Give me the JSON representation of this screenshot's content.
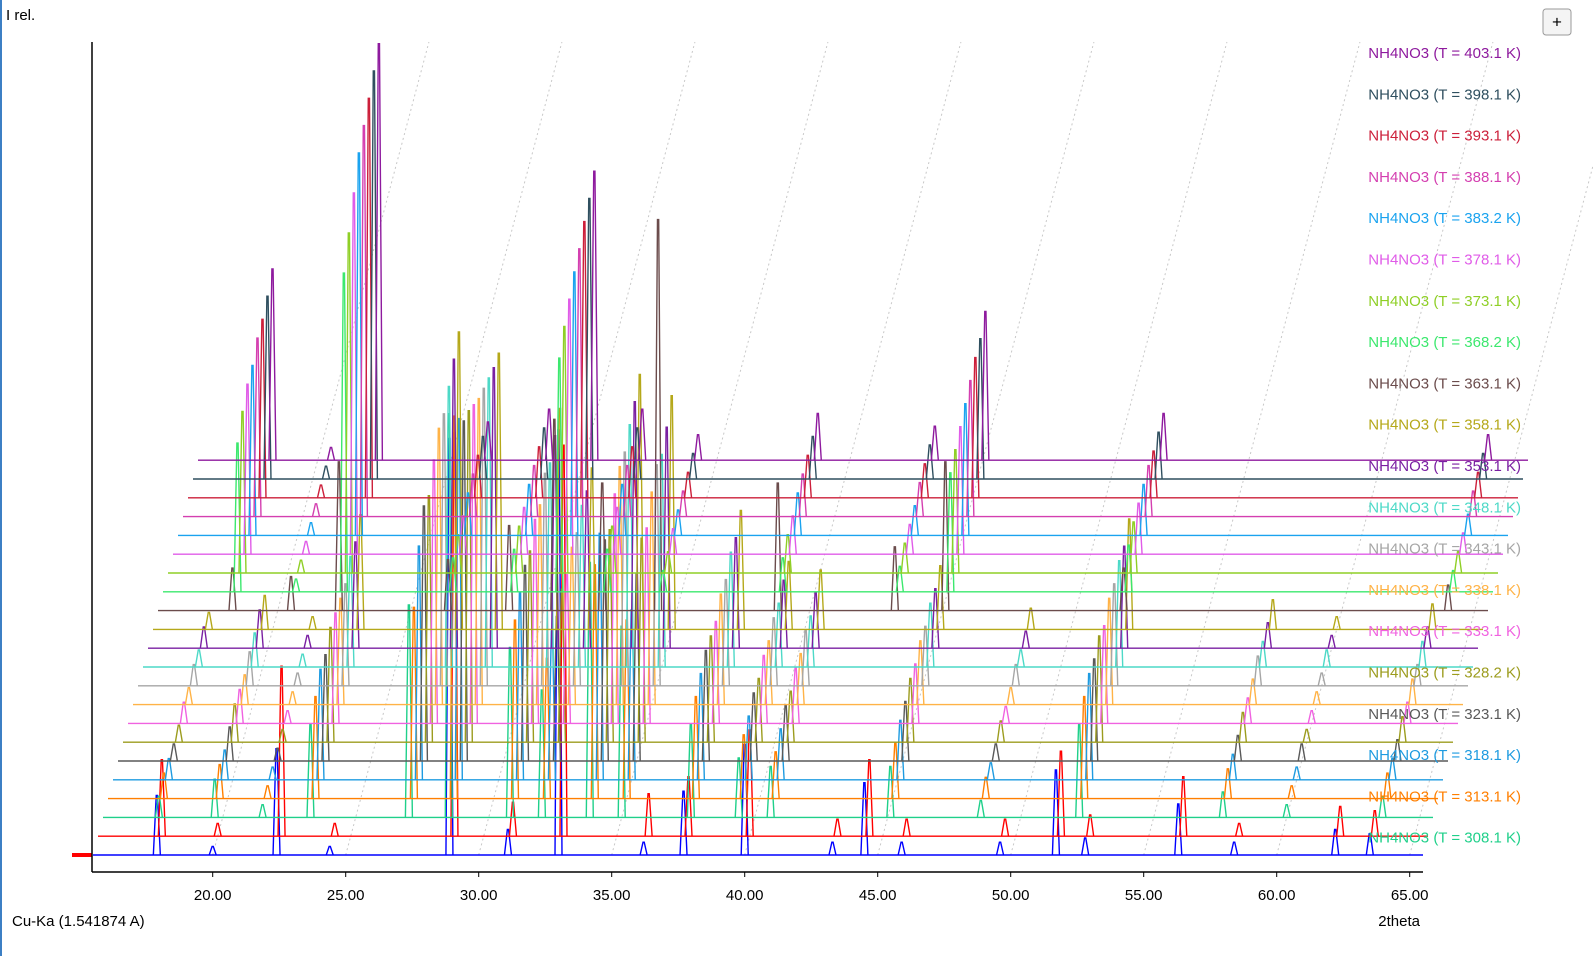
{
  "chart_data": {
    "type": "waterfall",
    "y_label": "I rel.",
    "x_label": "2theta",
    "radiation": "Cu-Ka (1.541874 A)",
    "button": "+",
    "xlim": [
      15.5,
      65.5
    ],
    "ylim": [
      0,
      100
    ],
    "xticks": [
      {
        "value": 20,
        "label": "20.00"
      },
      {
        "value": 25,
        "label": "25.00"
      },
      {
        "value": 30,
        "label": "30.00"
      },
      {
        "value": 35,
        "label": "35.00"
      },
      {
        "value": 40,
        "label": "40.00"
      },
      {
        "value": 45,
        "label": "45.00"
      },
      {
        "value": 50,
        "label": "50.00"
      },
      {
        "value": 55,
        "label": "55.00"
      },
      {
        "value": 60,
        "label": "60.00"
      },
      {
        "value": 65,
        "label": "65.00"
      }
    ],
    "grid": true,
    "legend": "right",
    "series": [
      {
        "name": null,
        "color": "#0000ff",
        "x": [
          17.9,
          20.0,
          22.4,
          24.4,
          28.9,
          31.1,
          33.0,
          36.2,
          37.7,
          40.0,
          43.3,
          44.5,
          45.9,
          49.6,
          51.7,
          52.8,
          56.3,
          58.4,
          62.2,
          63.5
        ],
        "values": [
          14,
          2,
          25,
          2,
          98,
          6,
          100,
          3,
          15,
          26,
          3,
          17,
          3,
          3,
          20,
          4,
          12,
          3,
          6,
          5
        ]
      },
      {
        "name": null,
        "color": "#ff0000",
        "x": [
          17.9,
          20.0,
          22.4,
          24.4,
          28.9,
          31.1,
          33.0,
          36.2,
          37.7,
          40.0,
          43.3,
          44.5,
          45.9,
          49.6,
          51.7,
          52.8,
          56.3,
          58.4,
          62.2,
          63.5
        ],
        "values": [
          18,
          3,
          40,
          3,
          95,
          8,
          92,
          10,
          14,
          25,
          4,
          18,
          4,
          4,
          20,
          5,
          14,
          3,
          7,
          6
        ]
      },
      {
        "name": "NH4NO3 (T = 308.1 K)",
        "color": "#1fd08a",
        "x": [
          17.6,
          19.7,
          21.5,
          23.3,
          27.0,
          28.5,
          30.8,
          32.0,
          33.8,
          35.0,
          37.6,
          39.4,
          40.6,
          45.1,
          48.5,
          52.2,
          57.6,
          60.0,
          63.6
        ],
        "values": [
          5,
          9,
          3,
          22,
          50,
          95,
          40,
          30,
          60,
          45,
          22,
          14,
          12,
          12,
          4,
          22,
          6,
          3,
          5
        ]
      },
      {
        "name": "NH4NO3 (T = 313.1 K)",
        "color": "#ff7f00",
        "x": [
          17.6,
          19.7,
          21.5,
          23.3,
          27.0,
          28.5,
          30.8,
          32.0,
          33.8,
          35.0,
          37.6,
          39.4,
          40.6,
          45.1,
          48.5,
          52.2,
          57.6,
          60.0,
          63.6
        ],
        "values": [
          6,
          8,
          3,
          24,
          45,
          90,
          42,
          33,
          55,
          42,
          24,
          15,
          11,
          13,
          5,
          24,
          7,
          3,
          6
        ]
      },
      {
        "name": "NH4NO3 (T = 318.1 K)",
        "color": "#1e9be0",
        "x": [
          17.6,
          19.7,
          21.5,
          23.3,
          27.0,
          28.5,
          30.8,
          32.0,
          33.8,
          35.0,
          37.6,
          39.4,
          40.6,
          45.1,
          48.5,
          52.2,
          57.6,
          60.0,
          63.6
        ],
        "values": [
          5,
          7,
          3,
          26,
          55,
          85,
          44,
          35,
          58,
          40,
          25,
          15,
          12,
          14,
          4,
          25,
          6,
          3,
          5
        ]
      },
      {
        "name": "NH4NO3 (T = 323.1 K)",
        "color": "#595959",
        "x": [
          17.6,
          19.7,
          21.5,
          23.3,
          27.0,
          28.5,
          30.8,
          32.0,
          33.8,
          35.0,
          37.6,
          39.4,
          40.6,
          45.1,
          48.5,
          52.2,
          57.6,
          60.0,
          63.6
        ],
        "values": [
          4,
          8,
          3,
          25,
          60,
          80,
          46,
          34,
          52,
          44,
          26,
          16,
          13,
          14,
          4,
          24,
          6,
          4,
          5
        ]
      },
      {
        "name": "NH4NO3 (T = 328.2 K)",
        "color": "#9c9c1e",
        "x": [
          17.6,
          19.7,
          21.5,
          23.3,
          27.0,
          28.5,
          30.8,
          32.0,
          33.8,
          35.0,
          37.6,
          39.4,
          40.6,
          45.1,
          48.5,
          52.2,
          57.6,
          60.0,
          63.6
        ],
        "values": [
          4,
          9,
          3,
          27,
          58,
          78,
          45,
          36,
          50,
          48,
          25,
          15,
          12,
          15,
          5,
          25,
          7,
          3,
          6
        ]
      },
      {
        "name": "NH4NO3 (T = 333.1 K)",
        "color": "#f062e0",
        "x": [
          17.6,
          19.7,
          21.5,
          23.3,
          27.0,
          28.5,
          30.8,
          32.0,
          33.8,
          35.0,
          37.6,
          39.4,
          40.6,
          45.1,
          48.5,
          52.2,
          57.6,
          60.0,
          63.6
        ],
        "values": [
          5,
          8,
          3,
          26,
          62,
          75,
          48,
          35,
          54,
          46,
          24,
          16,
          13,
          14,
          4,
          23,
          6,
          3,
          5
        ]
      },
      {
        "name": "NH4NO3 (T = 338.1 K)",
        "color": "#ffb347",
        "x": [
          17.6,
          19.7,
          21.5,
          23.3,
          27.0,
          28.5,
          30.8,
          32.0,
          33.8,
          35.0,
          37.6,
          39.4,
          40.6,
          45.1,
          48.5,
          52.2,
          57.6,
          60.0,
          63.6
        ],
        "values": [
          4,
          7,
          3,
          25,
          65,
          72,
          47,
          37,
          56,
          50,
          26,
          15,
          12,
          15,
          4,
          25,
          6,
          3,
          6
        ]
      },
      {
        "name": "NH4NO3 (T = 343.1 K)",
        "color": "#a6a6a6",
        "x": [
          17.6,
          19.7,
          21.5,
          23.3,
          27.0,
          28.5,
          30.8,
          32.0,
          33.8,
          35.0,
          37.6,
          39.4,
          40.6,
          45.1,
          48.5,
          52.2,
          57.6,
          60.0,
          63.6
        ],
        "values": [
          5,
          8,
          3,
          24,
          64,
          70,
          50,
          36,
          55,
          52,
          25,
          16,
          13,
          14,
          5,
          24,
          7,
          3,
          5
        ]
      },
      {
        "name": "NH4NO3 (T = 348.1 K)",
        "color": "#4dd9c7",
        "x": [
          17.6,
          19.7,
          21.5,
          23.3,
          27.0,
          28.5,
          30.8,
          32.0,
          33.8,
          35.0,
          37.6,
          39.4,
          40.6,
          45.1,
          48.5,
          52.2,
          57.6,
          60.0,
          63.6
        ],
        "values": [
          4,
          8,
          3,
          26,
          66,
          68,
          48,
          38,
          57,
          50,
          27,
          15,
          12,
          15,
          4,
          25,
          6,
          4,
          6
        ]
      },
      {
        "name": "NH4NO3 (T = 353.1 K)",
        "color": "#7a1fa2",
        "x": [
          17.6,
          19.7,
          21.5,
          23.3,
          27.0,
          28.5,
          30.8,
          32.0,
          33.8,
          35.0,
          37.6,
          39.4,
          40.6,
          45.1,
          48.5,
          52.2,
          57.6,
          60.0,
          63.6
        ],
        "values": [
          5,
          9,
          3,
          25,
          68,
          66,
          50,
          37,
          58,
          52,
          26,
          16,
          13,
          14,
          4,
          24,
          6,
          3,
          5
        ]
      },
      {
        "name": "NH4NO3 (T = 358.1 K)",
        "color": "#b5a81a",
        "x": [
          17.6,
          19.7,
          21.5,
          23.3,
          27.0,
          28.5,
          30.8,
          32.0,
          33.8,
          35.0,
          37.6,
          39.4,
          40.6,
          45.1,
          48.5,
          52.2,
          57.6,
          60.0,
          63.6
        ],
        "values": [
          4,
          8,
          3,
          27,
          70,
          65,
          52,
          38,
          60,
          55,
          28,
          16,
          14,
          15,
          5,
          26,
          7,
          3,
          6
        ]
      },
      {
        "name": "NH4NO3 (T = 363.1 K)",
        "color": "#6b4c4c",
        "x": [
          18.3,
          20.5,
          22.3,
          26.4,
          28.7,
          30.4,
          32.2,
          34.3,
          38.8,
          43.2,
          45.1,
          51.8,
          64.0
        ],
        "values": [
          10,
          8,
          35,
          12,
          20,
          45,
          30,
          92,
          30,
          15,
          35,
          10,
          6
        ]
      },
      {
        "name": "NH4NO3 (T = 368.2 K)",
        "color": "#3ce86e",
        "x": [
          18.3,
          20.5,
          22.3,
          26.4,
          28.7,
          30.4,
          32.2,
          34.3,
          38.8,
          43.2,
          45.1,
          51.8,
          64.0
        ],
        "values": [
          35,
          3,
          75,
          8,
          10,
          55,
          10,
          5,
          8,
          6,
          28,
          11,
          5
        ]
      },
      {
        "name": "NH4NO3 (T = 373.1 K)",
        "color": "#8fcf26",
        "x": [
          18.3,
          20.5,
          22.3,
          26.4,
          28.7,
          30.4,
          32.2,
          34.3,
          38.8,
          43.2,
          45.1,
          51.8,
          64.0
        ],
        "values": [
          38,
          3,
          80,
          9,
          11,
          58,
          11,
          5,
          9,
          7,
          29,
          12,
          5
        ]
      },
      {
        "name": "NH4NO3 (T = 378.1 K)",
        "color": "#e05ce8",
        "x": [
          18.3,
          20.5,
          22.3,
          26.4,
          28.7,
          30.4,
          32.2,
          34.3,
          38.8,
          43.2,
          45.1,
          51.8,
          64.0
        ],
        "values": [
          40,
          3,
          85,
          9,
          11,
          60,
          11,
          6,
          9,
          7,
          30,
          12,
          5
        ]
      },
      {
        "name": "NH4NO3 (T = 383.2 K)",
        "color": "#1aa3ef",
        "x": [
          18.3,
          20.5,
          22.3,
          26.4,
          28.7,
          30.4,
          32.2,
          34.3,
          38.8,
          43.2,
          45.1,
          51.8,
          64.0
        ],
        "values": [
          40,
          3,
          90,
          10,
          12,
          62,
          12,
          6,
          10,
          7,
          31,
          12,
          5
        ]
      },
      {
        "name": "NH4NO3 (T = 388.1 K)",
        "color": "#d43fb0",
        "x": [
          18.3,
          20.5,
          22.3,
          26.4,
          28.7,
          30.4,
          32.2,
          34.3,
          38.8,
          43.2,
          45.1,
          51.8,
          64.0
        ],
        "values": [
          42,
          3,
          92,
          10,
          12,
          63,
          12,
          6,
          10,
          8,
          32,
          12,
          6
        ]
      },
      {
        "name": "NH4NO3 (T = 393.1 K)",
        "color": "#cc1f3a",
        "x": [
          18.3,
          20.5,
          22.3,
          26.4,
          28.7,
          30.4,
          32.2,
          34.3,
          38.8,
          43.2,
          45.1,
          51.8,
          64.0
        ],
        "values": [
          42,
          3,
          94,
          10,
          12,
          65,
          12,
          6,
          10,
          8,
          33,
          11,
          6
        ]
      },
      {
        "name": "NH4NO3 (T = 398.1 K)",
        "color": "#2f4f5f",
        "x": [
          18.3,
          20.5,
          22.3,
          26.4,
          28.7,
          30.4,
          32.2,
          34.3,
          38.8,
          43.2,
          45.1,
          51.8,
          64.0
        ],
        "values": [
          43,
          3,
          96,
          10,
          12,
          66,
          12,
          6,
          10,
          8,
          33,
          11,
          6
        ]
      },
      {
        "name": "NH4NO3 (T = 403.1 K)",
        "color": "#8e1a9e",
        "x": [
          18.3,
          20.5,
          22.3,
          26.4,
          28.7,
          30.4,
          32.2,
          34.3,
          38.8,
          43.2,
          45.1,
          51.8,
          64.0
        ],
        "values": [
          45,
          3,
          98,
          9,
          12,
          68,
          12,
          6,
          11,
          8,
          35,
          11,
          6
        ]
      }
    ]
  }
}
